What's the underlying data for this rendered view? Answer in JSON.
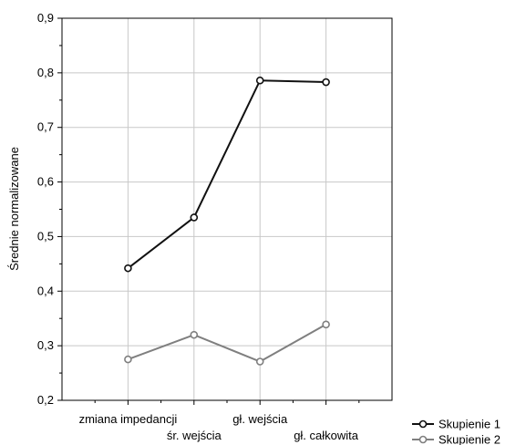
{
  "chart_data": {
    "type": "line",
    "title": "",
    "xlabel": "",
    "ylabel": "Średnie normalizowane",
    "categories": [
      "zmiana impedancji",
      "śr. wejścia",
      "gł. wejścia",
      "gł. całkowita"
    ],
    "ylim": [
      0.2,
      0.9
    ],
    "yticks": [
      "0,2",
      "0,3",
      "0,4",
      "0,5",
      "0,6",
      "0,7",
      "0,8",
      "0,9"
    ],
    "grid": true,
    "legend_position": "bottom-right",
    "series": [
      {
        "name": "Skupienie 1",
        "color": "#111111",
        "values": [
          0.442,
          0.535,
          0.786,
          0.783
        ]
      },
      {
        "name": "Skupienie 2",
        "color": "#7f7f7f",
        "values": [
          0.275,
          0.32,
          0.271,
          0.339
        ]
      }
    ]
  }
}
